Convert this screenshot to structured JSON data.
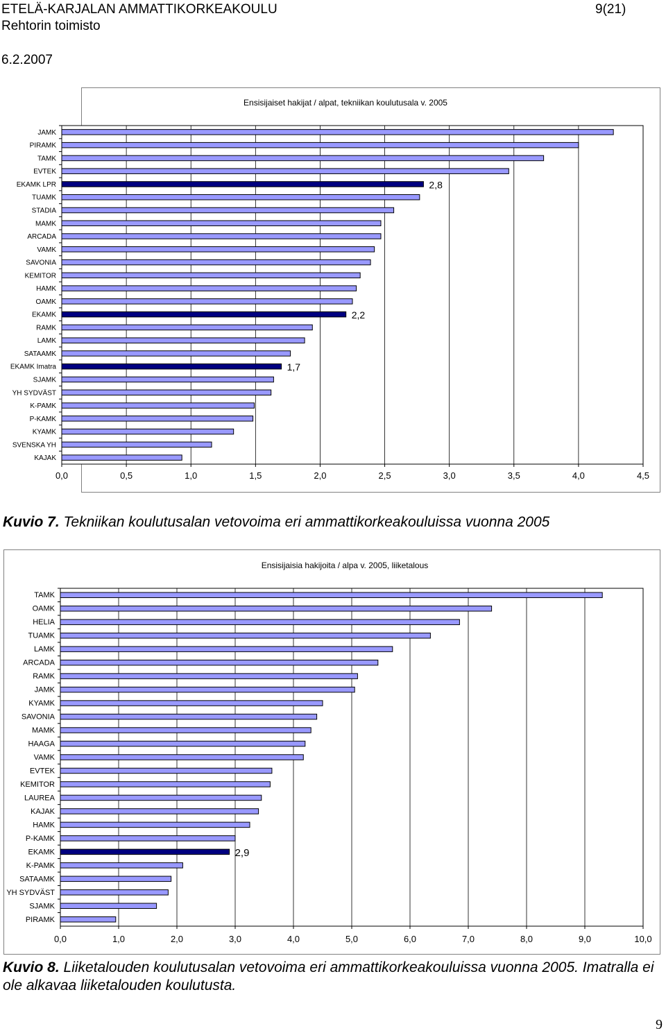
{
  "header": {
    "org": "ETELÄ-KARJALAN AMMATTIKORKEAKOULU",
    "page": "9(21)",
    "dept": "Rehtorin toimisto",
    "date": "6.2.2007"
  },
  "captions": [
    {
      "label": "Kuvio 7.",
      "text": " Tekniikan koulutusalan vetovoima eri ammattikorkeakouluissa vuonna 2005"
    },
    {
      "label": "Kuvio 8.",
      "text": " Liiketalouden koulutusalan vetovoima eri ammattikorkeakouluissa vuonna 2005. Imatralla ei ole alkavaa liiketalouden koulutusta."
    }
  ],
  "page_number": "9",
  "colors": {
    "bar": "#9999ff",
    "highlight": "#000080",
    "border": "#000000",
    "grid": "#000000"
  },
  "chart_data": [
    {
      "type": "bar",
      "orientation": "horizontal",
      "title": "Ensisijaiset hakijat / alpat, tekniikan koulutusala v. 2005",
      "categories": [
        "JAMK",
        "PIRAMK",
        "TAMK",
        "EVTEK",
        "EKAMK LPR",
        "TUAMK",
        "STADIA",
        "MAMK",
        "ARCADA",
        "VAMK",
        "SAVONIA",
        "KEMITOR",
        "HAMK",
        "OAMK",
        "EKAMK",
        "RAMK",
        "LAMK",
        "SATAAMK",
        "EKAMK Imatra",
        "SJAMK",
        "YH SYDVÄST",
        "K-PAMK",
        "P-KAMK",
        "KYAMK",
        "SVENSKA YH",
        "KAJAK"
      ],
      "values": [
        4.27,
        4.0,
        3.73,
        3.46,
        2.8,
        2.77,
        2.57,
        2.47,
        2.47,
        2.42,
        2.39,
        2.31,
        2.28,
        2.25,
        2.2,
        1.94,
        1.88,
        1.77,
        1.7,
        1.64,
        1.62,
        1.49,
        1.48,
        1.33,
        1.16,
        0.93
      ],
      "highlight": [
        "EKAMK LPR",
        "EKAMK",
        "EKAMK Imatra"
      ],
      "data_labels": {
        "EKAMK LPR": "2,8",
        "EKAMK": "2,2",
        "EKAMK Imatra": "1,7"
      },
      "xlim": [
        0,
        4.5
      ],
      "xticks": [
        "0,0",
        "0,5",
        "1,0",
        "1,5",
        "2,0",
        "2,5",
        "3,0",
        "3,5",
        "4,0",
        "4,5"
      ],
      "grid": true
    },
    {
      "type": "bar",
      "orientation": "horizontal",
      "title": "Ensisijaisia hakijoita / alpa v. 2005, liiketalous",
      "categories": [
        "TAMK",
        "OAMK",
        "HELIA",
        "TUAMK",
        "LAMK",
        "ARCADA",
        "RAMK",
        "JAMK",
        "KYAMK",
        "SAVONIA",
        "MAMK",
        "HAAGA",
        "VAMK",
        "EVTEK",
        "KEMITOR",
        "LAUREA",
        "KAJAK",
        "HAMK",
        "P-KAMK",
        "EKAMK",
        "K-PAMK",
        "SATAAMK",
        "YH SYDVÄST",
        "SJAMK",
        "PIRAMK"
      ],
      "values": [
        9.3,
        7.4,
        6.85,
        6.35,
        5.7,
        5.45,
        5.1,
        5.05,
        4.5,
        4.4,
        4.3,
        4.2,
        4.17,
        3.63,
        3.6,
        3.45,
        3.4,
        3.25,
        3.0,
        2.9,
        2.1,
        1.9,
        1.85,
        1.65,
        0.95
      ],
      "highlight": [
        "EKAMK"
      ],
      "data_labels": {
        "EKAMK": "2,9"
      },
      "xlim": [
        0,
        10
      ],
      "xticks": [
        "0,0",
        "1,0",
        "2,0",
        "3,0",
        "4,0",
        "5,0",
        "6,0",
        "7,0",
        "8,0",
        "9,0",
        "10,0"
      ],
      "grid": true
    }
  ]
}
